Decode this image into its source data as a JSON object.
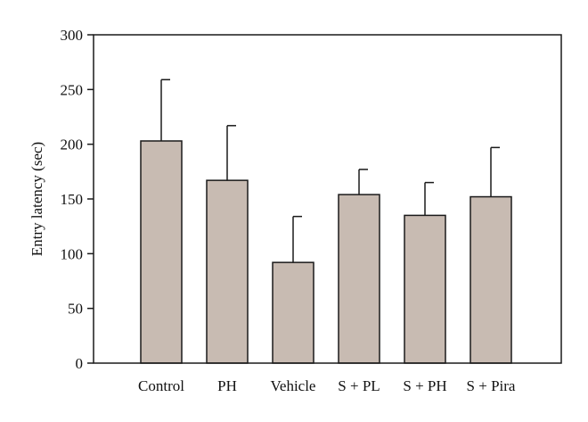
{
  "chart_data": {
    "type": "bar",
    "title": "",
    "xlabel": "",
    "ylabel": "Entry latency (sec)",
    "categories": [
      "Control",
      "PH",
      "Vehicle",
      "S + PL",
      "S + PH",
      "S + Pira"
    ],
    "values": [
      203,
      167,
      92,
      154,
      135,
      152
    ],
    "error_upper": [
      56,
      50,
      42,
      23,
      30,
      45
    ],
    "ylim": [
      0,
      300
    ],
    "yticks": [
      0,
      50,
      100,
      150,
      200,
      250,
      300
    ],
    "ytick_labels": [
      "0",
      "50",
      "100",
      "150",
      "200",
      "250",
      "300"
    ],
    "grid": false,
    "legend": "none",
    "colors": {
      "bar_fill": "#c8bbb2",
      "bar_stroke": "#1a1a1a",
      "axis": "#1a1a1a"
    }
  }
}
